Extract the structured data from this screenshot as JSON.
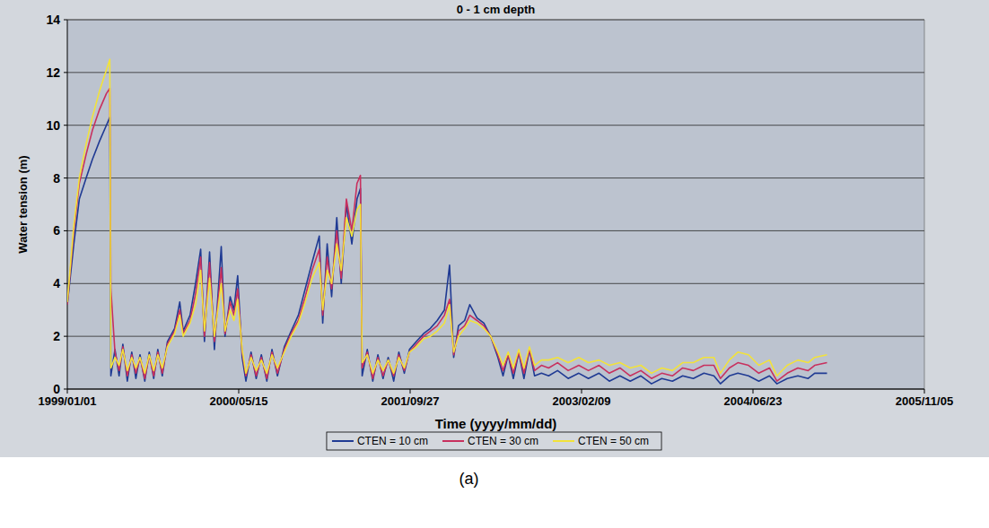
{
  "chart_data": {
    "type": "line",
    "title": "0 - 1 cm depth",
    "x_label": "Time (yyyy/mm/dd)",
    "y_label": "Water tension (m)",
    "caption": "(a)",
    "xlim": [
      "1999/01/01",
      "2005/11/05"
    ],
    "xticks": [
      "1999/01/01",
      "2000/05/15",
      "2001/09/27",
      "2003/02/09",
      "2004/06/23",
      "2005/11/05"
    ],
    "ylim": [
      0,
      14
    ],
    "yticks": [
      0,
      2,
      4,
      6,
      8,
      10,
      12,
      14
    ],
    "grid": true,
    "legend": "bottom",
    "x": [
      "1999/01/01",
      "1999/01/20",
      "1999/02/05",
      "1999/02/25",
      "1999/03/15",
      "1999/04/05",
      "1999/04/25",
      "1999/05/05",
      "1999/05/08",
      "1999/05/20",
      "1999/06/01",
      "1999/06/12",
      "1999/06/25",
      "1999/07/08",
      "1999/07/20",
      "1999/08/01",
      "1999/08/15",
      "1999/08/28",
      "1999/09/10",
      "1999/09/22",
      "1999/10/05",
      "1999/10/20",
      "1999/11/10",
      "1999/11/25",
      "1999/12/05",
      "1999/12/25",
      "2000/01/10",
      "2000/01/25",
      "2000/02/05",
      "2000/02/20",
      "2000/03/05",
      "2000/03/25",
      "2000/04/05",
      "2000/04/20",
      "2000/05/01",
      "2000/05/12",
      "2000/05/25",
      "2000/06/05",
      "2000/06/20",
      "2000/07/05",
      "2000/07/20",
      "2000/08/05",
      "2000/08/20",
      "2000/09/05",
      "2000/09/25",
      "2000/10/15",
      "2000/11/05",
      "2000/11/25",
      "2000/12/15",
      "2001/01/05",
      "2001/01/15",
      "2001/01/28",
      "2001/02/10",
      "2001/02/25",
      "2001/03/10",
      "2001/03/25",
      "2001/04/10",
      "2001/04/25",
      "2001/05/05",
      "2001/05/10",
      "2001/05/25",
      "2001/06/10",
      "2001/06/25",
      "2001/07/10",
      "2001/07/25",
      "2001/08/10",
      "2001/08/25",
      "2001/09/10",
      "2001/09/25",
      "2001/10/15",
      "2001/11/05",
      "2001/11/25",
      "2001/12/15",
      "2002/01/05",
      "2002/01/20",
      "2002/02/01",
      "2002/02/15",
      "2002/03/05",
      "2002/03/20",
      "2002/04/10",
      "2002/04/30",
      "2002/05/20",
      "2002/06/10",
      "2002/06/25",
      "2002/07/10",
      "2002/07/25",
      "2002/08/10",
      "2002/08/25",
      "2002/09/10",
      "2002/09/25",
      "2002/10/15",
      "2002/11/05",
      "2002/12/01",
      "2003/01/01",
      "2003/02/01",
      "2003/03/01",
      "2003/04/01",
      "2003/05/01",
      "2003/06/01",
      "2003/07/01",
      "2003/08/01",
      "2003/09/01",
      "2003/10/01",
      "2003/11/01",
      "2003/12/01",
      "2004/01/01",
      "2004/02/01",
      "2004/03/01",
      "2004/03/20",
      "2004/04/15",
      "2004/05/10",
      "2004/06/10",
      "2004/07/10",
      "2004/08/10",
      "2004/09/01",
      "2004/10/01",
      "2004/11/01",
      "2004/12/01",
      "2004/12/20",
      "2005/01/25"
    ],
    "series": [
      {
        "name": "CTEN = 10 cm",
        "color": "#1f3a93",
        "values": [
          3.2,
          5.5,
          7.2,
          8.0,
          8.7,
          9.4,
          10.0,
          10.3,
          0.5,
          1.5,
          0.5,
          1.7,
          0.3,
          1.4,
          0.4,
          1.3,
          0.3,
          1.4,
          0.4,
          1.5,
          0.5,
          1.8,
          2.3,
          3.3,
          2.2,
          2.8,
          4.0,
          5.3,
          1.8,
          5.2,
          1.5,
          5.4,
          2.0,
          3.5,
          3.0,
          4.3,
          1.2,
          0.3,
          1.4,
          0.4,
          1.3,
          0.3,
          1.5,
          0.5,
          1.6,
          2.2,
          2.8,
          3.8,
          4.8,
          5.8,
          2.5,
          5.5,
          3.5,
          6.5,
          4.0,
          7.0,
          5.5,
          7.2,
          7.6,
          0.5,
          1.5,
          0.3,
          1.3,
          0.4,
          1.2,
          0.3,
          1.4,
          0.6,
          1.5,
          1.8,
          2.1,
          2.3,
          2.6,
          3.0,
          4.7,
          1.2,
          2.4,
          2.6,
          3.2,
          2.7,
          2.5,
          2.0,
          1.2,
          0.5,
          1.3,
          0.4,
          1.4,
          0.4,
          1.5,
          0.5,
          0.6,
          0.5,
          0.7,
          0.4,
          0.6,
          0.4,
          0.6,
          0.3,
          0.5,
          0.3,
          0.5,
          0.2,
          0.4,
          0.3,
          0.5,
          0.4,
          0.6,
          0.5,
          0.2,
          0.5,
          0.6,
          0.5,
          0.3,
          0.5,
          0.2,
          0.4,
          0.5,
          0.4,
          0.6,
          0.6
        ]
      },
      {
        "name": "CTEN = 30 cm",
        "color": "#c8305e",
        "values": [
          3.2,
          6.0,
          7.8,
          8.9,
          9.8,
          10.6,
          11.2,
          11.4,
          3.8,
          1.4,
          0.7,
          1.6,
          0.5,
          1.3,
          0.6,
          1.2,
          0.4,
          1.3,
          0.5,
          1.4,
          0.6,
          1.7,
          2.2,
          3.0,
          2.1,
          2.6,
          3.6,
          5.0,
          2.0,
          4.8,
          1.8,
          4.6,
          2.1,
          3.3,
          2.8,
          3.8,
          1.4,
          0.5,
          1.3,
          0.5,
          1.2,
          0.4,
          1.4,
          0.6,
          1.5,
          2.1,
          2.6,
          3.5,
          4.5,
          5.3,
          2.8,
          5.0,
          3.8,
          6.0,
          4.2,
          7.2,
          6.0,
          7.8,
          8.1,
          0.8,
          1.4,
          0.4,
          1.2,
          0.5,
          1.1,
          0.5,
          1.3,
          0.7,
          1.4,
          1.7,
          2.0,
          2.2,
          2.4,
          2.8,
          3.4,
          1.3,
          2.2,
          2.4,
          2.8,
          2.6,
          2.4,
          2.0,
          1.3,
          0.7,
          1.3,
          0.6,
          1.4,
          0.6,
          1.5,
          0.7,
          0.9,
          0.8,
          1.0,
          0.7,
          0.9,
          0.7,
          0.9,
          0.6,
          0.8,
          0.5,
          0.7,
          0.4,
          0.6,
          0.5,
          0.8,
          0.7,
          0.9,
          0.9,
          0.4,
          0.8,
          1.0,
          0.9,
          0.6,
          0.8,
          0.3,
          0.6,
          0.8,
          0.7,
          0.9,
          1.0
        ]
      },
      {
        "name": "CTEN = 50 cm",
        "color": "#f2e23a",
        "values": [
          3.3,
          6.2,
          8.0,
          9.3,
          10.3,
          11.3,
          12.1,
          12.5,
          0.8,
          1.2,
          0.9,
          1.5,
          0.7,
          1.2,
          0.8,
          1.2,
          0.6,
          1.3,
          0.7,
          1.3,
          0.8,
          1.6,
          2.1,
          2.8,
          2.0,
          2.5,
          3.2,
          4.5,
          2.2,
          4.2,
          2.0,
          4.0,
          2.2,
          3.0,
          2.6,
          3.4,
          1.5,
          0.6,
          1.2,
          0.7,
          1.1,
          0.6,
          1.3,
          0.8,
          1.4,
          2.0,
          2.5,
          3.3,
          4.2,
          4.8,
          3.0,
          4.5,
          4.0,
          5.5,
          4.5,
          6.5,
          5.8,
          6.8,
          7.0,
          1.0,
          1.3,
          0.6,
          1.1,
          0.7,
          1.1,
          0.6,
          1.2,
          0.8,
          1.4,
          1.6,
          1.9,
          2.0,
          2.2,
          2.5,
          3.2,
          1.4,
          2.0,
          2.3,
          2.6,
          2.5,
          2.3,
          2.0,
          1.4,
          0.9,
          1.4,
          0.8,
          1.5,
          0.8,
          1.6,
          0.9,
          1.1,
          1.1,
          1.2,
          1.0,
          1.2,
          1.0,
          1.1,
          0.9,
          1.0,
          0.8,
          0.9,
          0.6,
          0.8,
          0.7,
          1.0,
          1.0,
          1.2,
          1.2,
          0.6,
          1.1,
          1.4,
          1.3,
          0.9,
          1.1,
          0.5,
          0.9,
          1.1,
          1.0,
          1.2,
          1.3
        ]
      }
    ]
  }
}
